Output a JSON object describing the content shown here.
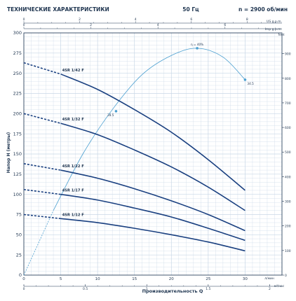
{
  "header": {
    "title": "ТЕХНИЧЕСКИЕ ХАРАКТЕРИСТИКИ",
    "frequency": "50 Гц",
    "speed": "n = 2900 об/мин"
  },
  "chart_data": {
    "type": "line",
    "xlabel": "Производительность  Q",
    "ylabel": "Напор  H  (метры)",
    "xunit": "л/мин",
    "xunit2": "м³/час",
    "top_axis": {
      "unit1": "US g.p.m.",
      "unit2": "Imp g.p.m.",
      "ticks_us": [
        "0",
        "2",
        "4",
        "6",
        "8"
      ],
      "ticks_imp": [
        "0",
        "2",
        "4",
        "6"
      ]
    },
    "x_ticks_lmin": [
      0,
      5,
      10,
      15,
      20,
      25,
      30
    ],
    "x_ticks_m3h": [
      "0",
      "0.5",
      "1",
      "1.5",
      "2"
    ],
    "xlim": [
      0,
      35
    ],
    "y_ticks_m": [
      0,
      25,
      50,
      75,
      100,
      125,
      150,
      175,
      200,
      225,
      250,
      275,
      300
    ],
    "ylim": [
      0,
      300
    ],
    "right_axis": {
      "unit": "feet",
      "ticks": [
        0,
        100,
        200,
        300,
        400,
        500,
        600,
        700,
        800,
        900
      ]
    },
    "series": [
      {
        "name": "4SR 1/42 F",
        "dashed_x": [
          0,
          5
        ],
        "dashed_y": [
          263,
          249
        ],
        "x": [
          5,
          10,
          15,
          20,
          25,
          30
        ],
        "y": [
          249,
          230,
          205,
          177,
          143,
          105
        ]
      },
      {
        "name": "4SR 1/32 F",
        "dashed_x": [
          0,
          5
        ],
        "dashed_y": [
          200,
          188
        ],
        "x": [
          5,
          10,
          15,
          20,
          25,
          30
        ],
        "y": [
          188,
          174,
          155,
          134,
          109,
          80
        ]
      },
      {
        "name": "4SR 1/22 F",
        "dashed_x": [
          0,
          5
        ],
        "dashed_y": [
          138,
          130
        ],
        "x": [
          5,
          10,
          15,
          20,
          25,
          30
        ],
        "y": [
          130,
          120,
          107,
          92,
          75,
          55
        ]
      },
      {
        "name": "4SR 1/17 F",
        "dashed_x": [
          0,
          5
        ],
        "dashed_y": [
          106,
          100
        ],
        "x": [
          5,
          10,
          15,
          20,
          25,
          30
        ],
        "y": [
          100,
          93,
          83,
          72,
          58,
          43
        ]
      },
      {
        "name": "4SR 1/12 F",
        "dashed_x": [
          0,
          5
        ],
        "dashed_y": [
          75,
          70
        ],
        "x": [
          5,
          10,
          15,
          20,
          25,
          30
        ],
        "y": [
          70,
          65,
          58,
          50,
          41,
          30
        ]
      }
    ],
    "efficiency": {
      "x": [
        0,
        4,
        8,
        12,
        16,
        20,
        23.5,
        27,
        30
      ],
      "y": [
        0,
        80,
        150,
        205,
        248,
        272,
        281,
        270,
        242
      ],
      "dashed_until_x": 5,
      "markers": [
        {
          "x": 12.5,
          "y": 203,
          "label": "28.5"
        },
        {
          "x": 23.5,
          "y": 281,
          "label": "η = 40%"
        },
        {
          "x": 30,
          "y": 242,
          "label": "34.5"
        }
      ]
    },
    "grid": true
  },
  "colors": {
    "curve": "#1a4080",
    "efficiency": "#4a9fd0",
    "grid": "#c8d7e6",
    "axis": "#1f3550"
  }
}
